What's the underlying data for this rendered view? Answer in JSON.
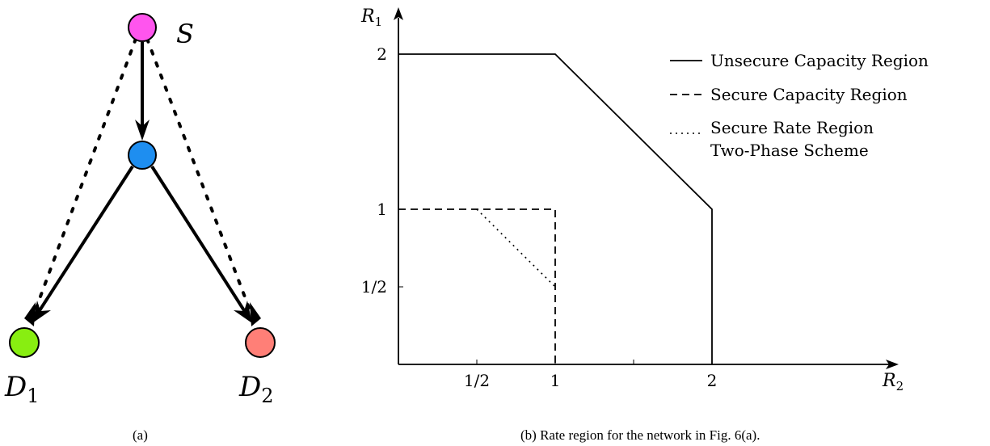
{
  "left_panel": {
    "source_label": "S",
    "dest1_label": "D",
    "dest1_sub": "1",
    "dest2_label": "D",
    "dest2_sub": "2",
    "colors": {
      "source": "#ff55ee",
      "relay": "#1e8ef0",
      "dest1": "#88ee11",
      "dest2": "#ff7f77"
    },
    "caption": "(a)"
  },
  "right_panel": {
    "caption": "(b) Rate region for the network in Fig. 6(a).",
    "chart_data": {
      "type": "line",
      "xlabel": "R",
      "xlabel_sub": "2",
      "ylabel": "R",
      "ylabel_sub": "1",
      "xlim": [
        0,
        2.25
      ],
      "ylim": [
        0,
        2.2
      ],
      "xticks": [
        {
          "value": 0.5,
          "label": "1/2"
        },
        {
          "value": 1,
          "label": "1"
        },
        {
          "value": 1.5,
          "label": ""
        },
        {
          "value": 2,
          "label": "2"
        }
      ],
      "yticks": [
        {
          "value": 0.5,
          "label": "1/2"
        },
        {
          "value": 1,
          "label": "1"
        },
        {
          "value": 2,
          "label": "2"
        }
      ],
      "series": [
        {
          "name": "Unsecure Capacity Region",
          "style": "solid",
          "points": [
            [
              0,
              2
            ],
            [
              1,
              2
            ],
            [
              2,
              1
            ],
            [
              2,
              0
            ]
          ]
        },
        {
          "name": "Secure Capacity Region",
          "style": "dashed",
          "points": [
            [
              0,
              1
            ],
            [
              1,
              1
            ],
            [
              1,
              0
            ]
          ]
        },
        {
          "name": "Secure Rate Region",
          "name_line2": "Two-Phase Scheme",
          "style": "dotted",
          "points": [
            [
              0.5,
              1
            ],
            [
              1,
              0.5
            ]
          ]
        }
      ],
      "legend_position": "top-right"
    }
  }
}
